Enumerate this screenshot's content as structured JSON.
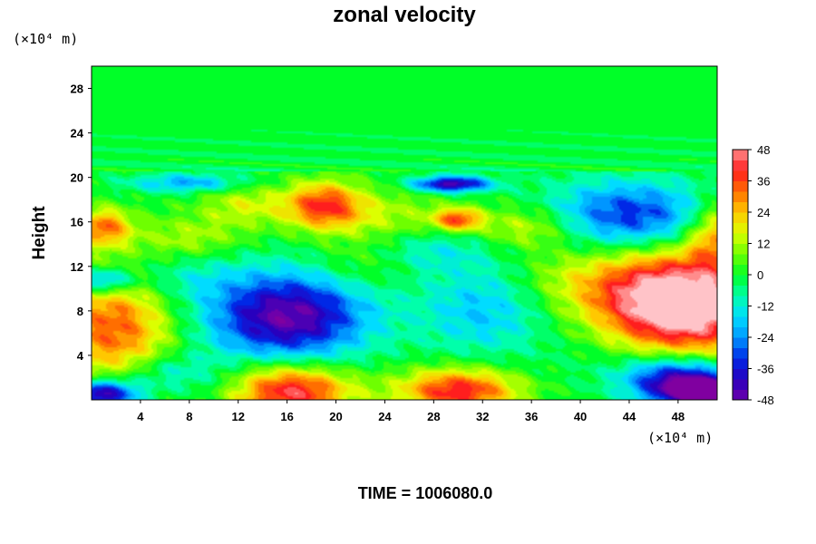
{
  "chart_data": {
    "type": "heatmap",
    "title": "zonal velocity",
    "ylabel": "Height",
    "xlabel": "",
    "x_unit_label": "(×10⁴ m)",
    "y_unit_label": "(×10⁴ m)",
    "time_label": "TIME = 1006080.0",
    "xlim": [
      0,
      51.2
    ],
    "ylim": [
      0,
      30
    ],
    "x_ticks": [
      "4",
      "8",
      "12",
      "16",
      "20",
      "24",
      "28",
      "32",
      "36",
      "40",
      "44",
      "48"
    ],
    "y_ticks": [
      "4",
      "8",
      "12",
      "16",
      "20",
      "24",
      "28"
    ],
    "colorbar": {
      "range": [
        -48,
        48
      ],
      "ticks": [
        "48",
        "36",
        "24",
        "12",
        "0",
        "-12",
        "-24",
        "-36",
        "-48"
      ]
    },
    "features": [
      {
        "x": 16,
        "y": 7.5,
        "value": -48,
        "sx": 4.6,
        "sy": 2.8
      },
      {
        "x": 28,
        "y": 13.4,
        "value": -12,
        "sx": 3.2,
        "sy": 1.4
      },
      {
        "x": 16,
        "y": 0.8,
        "value": 48,
        "sx": 3.6,
        "sy": 1.7
      },
      {
        "x": 30,
        "y": 0.8,
        "value": 42,
        "sx": 3.4,
        "sy": 1.4
      },
      {
        "x": 1.8,
        "y": 6.5,
        "value": 34,
        "sx": 3.4,
        "sy": 3.6
      },
      {
        "x": 49.5,
        "y": 8.5,
        "value": 52,
        "sx": 4.2,
        "sy": 3.2
      },
      {
        "x": 44,
        "y": 9.3,
        "value": 30,
        "sx": 4.2,
        "sy": 3.0
      },
      {
        "x": 44,
        "y": 16.5,
        "value": -34,
        "sx": 4.8,
        "sy": 2.2
      },
      {
        "x": 48,
        "y": 2,
        "value": -42,
        "sx": 3.2,
        "sy": 1.4
      },
      {
        "x": 50.5,
        "y": 0.6,
        "value": -52,
        "sx": 2.8,
        "sy": 1.0
      },
      {
        "x": 0.8,
        "y": 0.5,
        "value": -50,
        "sx": 2.2,
        "sy": 0.9
      },
      {
        "x": 32,
        "y": 8,
        "value": -18,
        "sx": 3.6,
        "sy": 2.8
      },
      {
        "x": 19,
        "y": 17.5,
        "value": 36,
        "sx": 2.2,
        "sy": 1.5
      },
      {
        "x": 12.5,
        "y": 17.5,
        "value": 15,
        "sx": 2.6,
        "sy": 1.4
      },
      {
        "x": 30,
        "y": 16.2,
        "value": 34,
        "sx": 1.4,
        "sy": 0.7
      },
      {
        "x": 29.5,
        "y": 19.4,
        "value": -46,
        "sx": 2.2,
        "sy": 0.5
      },
      {
        "x": 8,
        "y": 19.5,
        "value": -22,
        "sx": 3.4,
        "sy": 0.6
      },
      {
        "x": 1,
        "y": 15.5,
        "value": 32,
        "sx": 1.6,
        "sy": 1.2
      },
      {
        "x": 51,
        "y": 15,
        "value": 26,
        "sx": 1.6,
        "sy": 2.0
      },
      {
        "x": 1,
        "y": 10.7,
        "value": -30,
        "sx": 1.6,
        "sy": 0.8
      },
      {
        "x": 36,
        "y": 15.5,
        "value": 18,
        "sx": 3.0,
        "sy": 1.4
      },
      {
        "x": 24,
        "y": 16.5,
        "value": 12,
        "sx": 4.0,
        "sy": 1.6
      },
      {
        "x": 8,
        "y": 14.5,
        "value": 12,
        "sx": 3.0,
        "sy": 1.4
      },
      {
        "x": 7,
        "y": 11,
        "value": -10,
        "sx": 3.5,
        "sy": 1.6
      },
      {
        "x": 12,
        "y": 1.0,
        "value": -8,
        "sx": 3.0,
        "sy": 1.2
      },
      {
        "x": 41,
        "y": 5.5,
        "value": -6,
        "sx": 3.4,
        "sy": 2.6
      },
      {
        "x": 38,
        "y": 11,
        "value": 6,
        "sx": 2.6,
        "sy": 1.6
      },
      {
        "x": 22,
        "y": 12,
        "value": 8,
        "sx": 3.0,
        "sy": 1.6
      },
      {
        "x": 6,
        "y": 2.5,
        "value": -14,
        "sx": 3.0,
        "sy": 1.2
      }
    ],
    "upper_layer_bands": {
      "from_height": 20.5,
      "amplitude": 5,
      "wavelength": 1.2
    }
  }
}
